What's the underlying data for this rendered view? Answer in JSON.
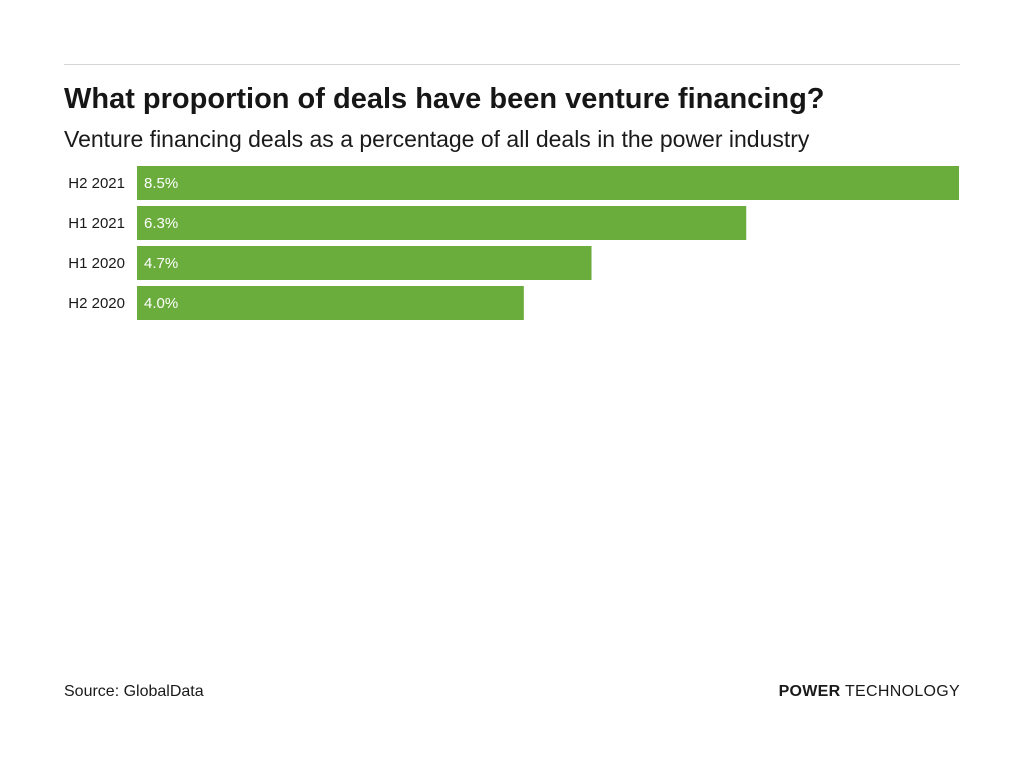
{
  "header": {
    "title": "What proportion of deals have been venture financing?",
    "subtitle": "Venture financing deals as a percentage of all deals in the power industry"
  },
  "footer": {
    "source": "Source: GlobalData",
    "brand_strong": "POWER",
    "brand_light": "TECHNOLOGY"
  },
  "colors": {
    "bar": "#6aad3d",
    "bar_label": "#ffffff",
    "category_label": "#1a1a1a",
    "rule": "#d4d4d4"
  },
  "chart_data": {
    "type": "bar",
    "orientation": "horizontal",
    "title": "What proportion of deals have been venture financing?",
    "subtitle": "Venture financing deals as a percentage of all deals in the power industry",
    "categories": [
      "H2 2021",
      "H1 2021",
      "H1 2020",
      "H2 2020"
    ],
    "values": [
      8.5,
      6.3,
      4.7,
      4.0
    ],
    "value_labels": [
      "8.5%",
      "6.3%",
      "4.7%",
      "4.0%"
    ],
    "unit": "%",
    "xlim": [
      0,
      8.5
    ],
    "grid": false,
    "legend": "none"
  }
}
